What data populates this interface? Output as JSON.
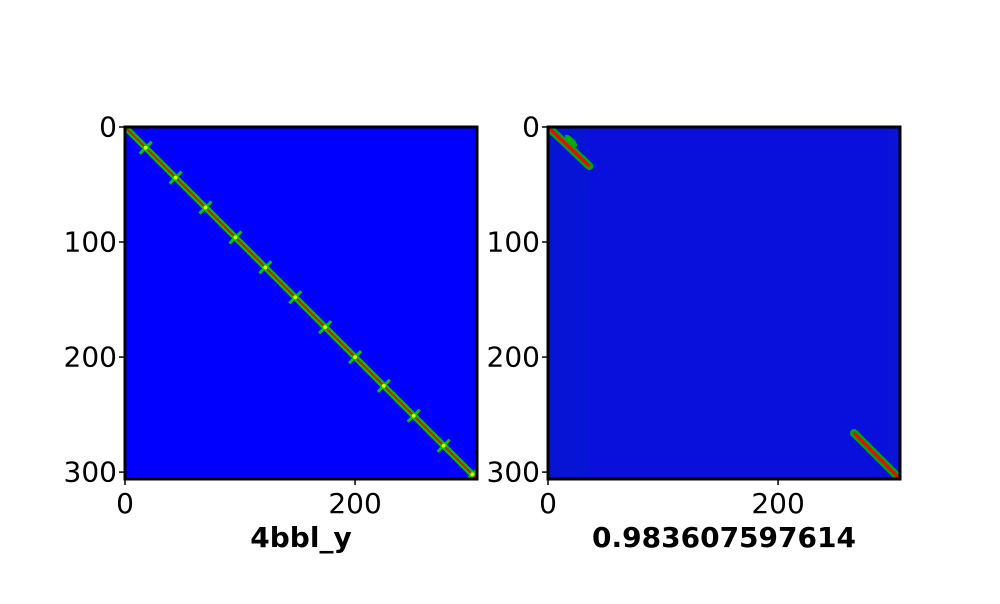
{
  "chart_data": [
    {
      "type": "heatmap",
      "title": "",
      "xlabel": "4bbl_y",
      "ylabel": "",
      "size": 306,
      "xlim": [
        0,
        306
      ],
      "ylim": [
        306,
        0
      ],
      "xticks": [
        0,
        200
      ],
      "yticks": [
        0,
        100,
        200,
        300
      ],
      "background_color": "#0000ff",
      "diagonal": {
        "from": [
          0,
          0
        ],
        "to": [
          306,
          306
        ],
        "colors": {
          "outer": "#00c800",
          "core": "#ff0000"
        },
        "marker_positions": [
          18,
          44,
          70,
          96,
          122,
          148,
          174,
          200,
          225,
          251,
          277,
          302
        ]
      }
    },
    {
      "type": "heatmap",
      "title": "",
      "xlabel": "0.983607597614",
      "ylabel": "",
      "size": 306,
      "xlim": [
        0,
        306
      ],
      "ylim": [
        306,
        0
      ],
      "xticks": [
        0,
        200
      ],
      "yticks": [
        0,
        100,
        200,
        300
      ],
      "background_color": "#0a10dc",
      "segments": [
        {
          "from": [
            0,
            0
          ],
          "to": [
            36,
            34
          ]
        },
        {
          "from": [
            266,
            266
          ],
          "to": [
            306,
            306
          ]
        }
      ],
      "side_blob": {
        "x": 20,
        "y": 12,
        "color": "#00b000"
      },
      "colors": {
        "outer": "#00b400",
        "core": "#ff0000"
      }
    }
  ]
}
